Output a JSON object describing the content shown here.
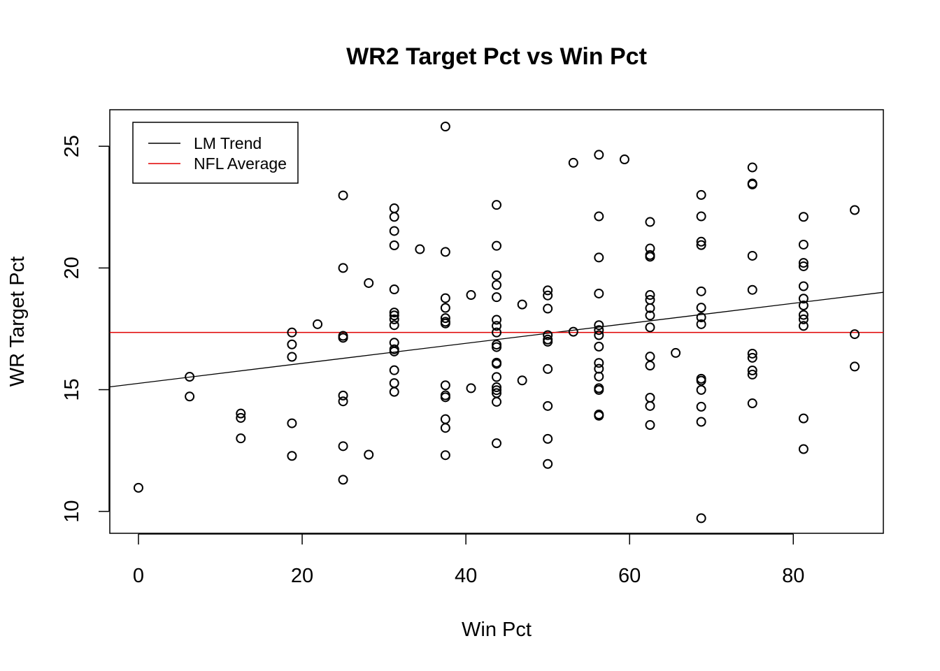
{
  "chart_data": {
    "type": "scatter",
    "title": "WR2 Target Pct vs Win Pct",
    "xlabel": "Win Pct",
    "ylabel": "WR Target Pct",
    "xlim": [
      -3.5,
      91
    ],
    "ylim": [
      9.1,
      26.5
    ],
    "x_ticks": [
      0,
      20,
      40,
      60,
      80
    ],
    "y_ticks": [
      10,
      15,
      20,
      25
    ],
    "grid": false,
    "legend": {
      "position": "top-left",
      "entries": [
        {
          "label": "LM Trend",
          "color": "#000000"
        },
        {
          "label": "NFL Average",
          "color": "#e00000"
        }
      ]
    },
    "lines": {
      "lm_trend": {
        "intercept": 15.26,
        "slope": 0.0411,
        "color": "#000000"
      },
      "nfl_average": {
        "y": 17.35,
        "color": "#e00000"
      }
    },
    "points": [
      [
        0,
        10.97
      ],
      [
        6.25,
        15.53
      ],
      [
        6.25,
        14.72
      ],
      [
        12.5,
        14.02
      ],
      [
        12.5,
        13.84
      ],
      [
        12.5,
        13.0
      ],
      [
        18.75,
        17.35
      ],
      [
        18.75,
        16.86
      ],
      [
        18.75,
        16.35
      ],
      [
        18.75,
        13.62
      ],
      [
        18.75,
        12.28
      ],
      [
        21.88,
        17.69
      ],
      [
        25,
        22.98
      ],
      [
        25,
        20.0
      ],
      [
        25,
        17.21
      ],
      [
        25,
        17.13
      ],
      [
        25,
        14.76
      ],
      [
        25,
        14.52
      ],
      [
        25,
        12.68
      ],
      [
        25,
        11.3
      ],
      [
        28.13,
        19.38
      ],
      [
        28.13,
        12.33
      ],
      [
        31.25,
        22.45
      ],
      [
        31.25,
        22.1
      ],
      [
        31.25,
        21.52
      ],
      [
        31.25,
        20.93
      ],
      [
        31.25,
        19.12
      ],
      [
        31.25,
        18.17
      ],
      [
        31.25,
        18.05
      ],
      [
        31.25,
        17.89
      ],
      [
        31.25,
        17.65
      ],
      [
        31.25,
        16.93
      ],
      [
        31.25,
        16.66
      ],
      [
        31.25,
        16.57
      ],
      [
        31.25,
        15.8
      ],
      [
        31.25,
        15.27
      ],
      [
        31.25,
        14.91
      ],
      [
        34.38,
        20.77
      ],
      [
        37.5,
        25.81
      ],
      [
        37.5,
        20.66
      ],
      [
        37.5,
        18.76
      ],
      [
        37.5,
        18.36
      ],
      [
        37.5,
        17.94
      ],
      [
        37.5,
        17.79
      ],
      [
        37.5,
        17.72
      ],
      [
        37.5,
        15.18
      ],
      [
        37.5,
        14.77
      ],
      [
        37.5,
        14.69
      ],
      [
        37.5,
        13.79
      ],
      [
        37.5,
        13.43
      ],
      [
        37.5,
        12.31
      ],
      [
        40.63,
        18.89
      ],
      [
        40.63,
        15.06
      ],
      [
        43.75,
        22.59
      ],
      [
        43.75,
        20.91
      ],
      [
        43.75,
        19.7
      ],
      [
        43.75,
        19.3
      ],
      [
        43.75,
        18.8
      ],
      [
        43.75,
        17.87
      ],
      [
        43.75,
        17.62
      ],
      [
        43.75,
        17.35
      ],
      [
        43.75,
        16.85
      ],
      [
        43.75,
        16.75
      ],
      [
        43.75,
        16.11
      ],
      [
        43.75,
        16.06
      ],
      [
        43.75,
        15.52
      ],
      [
        43.75,
        15.1
      ],
      [
        43.75,
        14.98
      ],
      [
        43.75,
        14.86
      ],
      [
        43.75,
        14.5
      ],
      [
        43.75,
        12.8
      ],
      [
        46.88,
        18.5
      ],
      [
        46.88,
        15.38
      ],
      [
        50,
        19.08
      ],
      [
        50,
        18.87
      ],
      [
        50,
        18.33
      ],
      [
        50,
        17.24
      ],
      [
        50,
        17.06
      ],
      [
        50,
        16.97
      ],
      [
        50,
        15.85
      ],
      [
        50,
        14.33
      ],
      [
        50,
        12.98
      ],
      [
        50,
        11.95
      ],
      [
        53.13,
        24.32
      ],
      [
        53.13,
        17.38
      ],
      [
        56.25,
        24.65
      ],
      [
        56.25,
        22.12
      ],
      [
        56.25,
        20.43
      ],
      [
        56.25,
        18.95
      ],
      [
        56.25,
        17.65
      ],
      [
        56.25,
        17.45
      ],
      [
        56.25,
        17.24
      ],
      [
        56.25,
        16.77
      ],
      [
        56.25,
        16.1
      ],
      [
        56.25,
        15.86
      ],
      [
        56.25,
        15.54
      ],
      [
        56.25,
        15.06
      ],
      [
        56.25,
        14.99
      ],
      [
        56.25,
        13.98
      ],
      [
        56.25,
        13.93
      ],
      [
        59.38,
        24.46
      ],
      [
        62.5,
        21.89
      ],
      [
        62.5,
        20.8
      ],
      [
        62.5,
        20.53
      ],
      [
        62.5,
        20.46
      ],
      [
        62.5,
        18.89
      ],
      [
        62.5,
        18.69
      ],
      [
        62.5,
        18.35
      ],
      [
        62.5,
        18.05
      ],
      [
        62.5,
        17.56
      ],
      [
        62.5,
        16.36
      ],
      [
        62.5,
        15.99
      ],
      [
        62.5,
        14.67
      ],
      [
        62.5,
        14.33
      ],
      [
        62.5,
        13.55
      ],
      [
        65.63,
        16.51
      ],
      [
        68.75,
        23.0
      ],
      [
        68.75,
        22.12
      ],
      [
        68.75,
        21.08
      ],
      [
        68.75,
        20.94
      ],
      [
        68.75,
        19.04
      ],
      [
        68.75,
        18.37
      ],
      [
        68.75,
        17.97
      ],
      [
        68.75,
        17.69
      ],
      [
        68.75,
        15.45
      ],
      [
        68.75,
        15.37
      ],
      [
        68.75,
        14.99
      ],
      [
        68.75,
        14.3
      ],
      [
        68.75,
        13.68
      ],
      [
        68.75,
        9.72
      ],
      [
        75,
        24.13
      ],
      [
        75,
        23.47
      ],
      [
        75,
        23.43
      ],
      [
        75,
        20.5
      ],
      [
        75,
        19.1
      ],
      [
        75,
        16.48
      ],
      [
        75,
        16.31
      ],
      [
        75,
        15.79
      ],
      [
        75,
        15.62
      ],
      [
        75,
        14.44
      ],
      [
        81.25,
        22.1
      ],
      [
        81.25,
        20.96
      ],
      [
        81.25,
        20.21
      ],
      [
        81.25,
        20.07
      ],
      [
        81.25,
        19.25
      ],
      [
        81.25,
        18.74
      ],
      [
        81.25,
        18.46
      ],
      [
        81.25,
        18.07
      ],
      [
        81.25,
        17.89
      ],
      [
        81.25,
        17.62
      ],
      [
        81.25,
        13.82
      ],
      [
        81.25,
        12.56
      ],
      [
        87.5,
        22.38
      ],
      [
        87.5,
        17.28
      ],
      [
        87.5,
        15.95
      ]
    ]
  }
}
